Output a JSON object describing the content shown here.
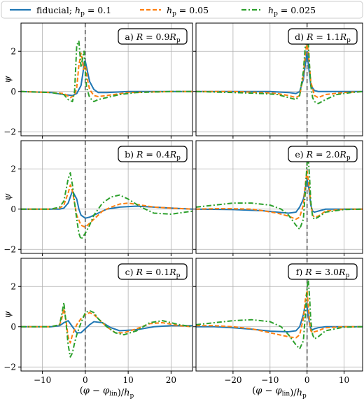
{
  "chart_data": {
    "type": "line",
    "legend": {
      "placement": "top",
      "entries": [
        {
          "name": "fiducial; h_p = 0.1",
          "color": "#1f77b4",
          "dash": "solid"
        },
        {
          "name": "h_p = 0.05",
          "color": "#ff7f0e",
          "dash": "dashed"
        },
        {
          "name": "h_p = 0.025",
          "color": "#2ca02c",
          "dash": "dashdot"
        }
      ]
    },
    "shared": {
      "ylabel": "ψ",
      "xlabel": "(φ − φ_lin)/h_p",
      "ylim": [
        -2.2,
        3.4
      ],
      "yticks": [
        -2,
        0,
        2
      ],
      "vline_x": 0,
      "grid": true
    },
    "columns": [
      {
        "xlim": [
          -15,
          25
        ],
        "xticks": [
          -10,
          0,
          10,
          20
        ]
      },
      {
        "xlim": [
          -30,
          15
        ],
        "xticks": [
          -20,
          -10,
          0,
          10
        ]
      }
    ],
    "panels": [
      {
        "label": "a)",
        "R": "0.9",
        "col": 0,
        "row": 0,
        "series": [
          {
            "name": "fiducial; h_p = 0.1",
            "x": [
              -15,
              -8,
              -5,
              -3,
              -2,
              -1,
              -0.5,
              -0.2,
              0,
              0.5,
              1,
              2,
              3,
              5,
              10,
              20,
              25
            ],
            "y": [
              0,
              -0.05,
              -0.15,
              -0.2,
              -0.1,
              0.3,
              1.0,
              1.5,
              1.5,
              1.0,
              0.5,
              0.1,
              -0.05,
              -0.05,
              0,
              0,
              0
            ]
          },
          {
            "name": "h_p = 0.05",
            "x": [
              -15,
              -8,
              -5,
              -3.5,
              -2.5,
              -2,
              -1.5,
              -1,
              -0.7,
              -0.4,
              0,
              0.5,
              1,
              2,
              3,
              5,
              10,
              20,
              25
            ],
            "y": [
              0,
              -0.05,
              -0.1,
              -0.3,
              -0.2,
              0.2,
              1.3,
              1.9,
              1.6,
              1.1,
              1.3,
              0.6,
              0.1,
              -0.2,
              -0.25,
              -0.2,
              -0.05,
              0,
              0
            ]
          },
          {
            "name": "h_p = 0.025",
            "x": [
              -15,
              -8,
              -5,
              -4,
              -3,
              -2.5,
              -2,
              -1.5,
              -1,
              -0.6,
              -0.3,
              0,
              0.3,
              1,
              2,
              3,
              5,
              8,
              12,
              20,
              25
            ],
            "y": [
              0,
              -0.05,
              -0.15,
              -0.4,
              -0.5,
              0,
              2.3,
              2.5,
              1.2,
              1.7,
              2.0,
              1.0,
              0.2,
              -0.3,
              -0.5,
              -0.4,
              -0.3,
              -0.15,
              -0.05,
              0,
              0
            ]
          }
        ]
      },
      {
        "label": "b)",
        "R": "0.4",
        "col": 0,
        "row": 1,
        "series": [
          {
            "name": "fiducial; h_p = 0.1",
            "x": [
              -15,
              -8,
              -6,
              -5,
              -4,
              -3,
              -2,
              -1.5,
              -1,
              0,
              1,
              3,
              5,
              8,
              12,
              16,
              20,
              25
            ],
            "y": [
              0,
              0,
              0,
              0.05,
              0.3,
              0.9,
              0.5,
              0,
              -0.3,
              -0.45,
              -0.4,
              -0.2,
              0,
              0.1,
              0.15,
              0.1,
              0.05,
              0
            ]
          },
          {
            "name": "h_p = 0.05",
            "x": [
              -15,
              -8,
              -6,
              -5,
              -4,
              -3.5,
              -3,
              -2.5,
              -2,
              -1,
              0,
              1,
              2,
              4,
              6,
              8,
              10,
              13,
              16,
              20,
              25
            ],
            "y": [
              0,
              0,
              0.05,
              0.2,
              0.8,
              1.2,
              0.9,
              0.3,
              -0.3,
              -0.8,
              -0.9,
              -0.7,
              -0.5,
              -0.1,
              0.1,
              0.25,
              0.3,
              0.2,
              0.1,
              0.05,
              0
            ]
          },
          {
            "name": "h_p = 0.025",
            "x": [
              -15,
              -8,
              -6,
              -5,
              -4,
              -3.5,
              -3,
              -2.5,
              -2,
              -1.5,
              -1,
              0,
              1,
              2,
              4,
              6,
              8,
              10,
              13,
              16,
              20,
              25
            ],
            "y": [
              0,
              0,
              0.1,
              0.4,
              1.5,
              1.8,
              1.2,
              0.3,
              -0.5,
              -1.2,
              -1.5,
              -1.2,
              -0.8,
              -0.3,
              0.3,
              0.6,
              0.7,
              0.5,
              0.1,
              -0.2,
              -0.25,
              -0.1
            ]
          }
        ]
      },
      {
        "label": "c)",
        "R": "0.1",
        "col": 0,
        "row": 2,
        "series": [
          {
            "name": "fiducial; h_p = 0.1",
            "x": [
              -15,
              -8,
              -6,
              -5,
              -4,
              -3,
              -2,
              -1,
              0,
              1,
              2,
              4,
              6,
              8,
              12,
              16,
              20,
              25
            ],
            "y": [
              0,
              0,
              0.05,
              0.2,
              0.3,
              0,
              -0.3,
              -0.3,
              -0.1,
              0.1,
              0.25,
              0.2,
              -0.05,
              -0.2,
              -0.15,
              0,
              0.05,
              0.05
            ]
          },
          {
            "name": "h_p = 0.05",
            "x": [
              -15,
              -8,
              -6,
              -5.5,
              -5,
              -4.5,
              -4,
              -3.5,
              -3,
              -2,
              -1,
              0,
              1,
              2,
              3,
              5,
              7,
              9,
              12,
              15,
              18,
              22,
              25
            ],
            "y": [
              0,
              0,
              0.1,
              0.4,
              0.9,
              0.3,
              -0.5,
              -0.8,
              -0.4,
              0.1,
              0.4,
              0.6,
              0.7,
              0.6,
              0.4,
              0,
              -0.3,
              -0.3,
              -0.1,
              0.15,
              0.2,
              0.05,
              0
            ]
          },
          {
            "name": "h_p = 0.025",
            "x": [
              -15,
              -8,
              -6,
              -5.5,
              -5,
              -4.5,
              -4,
              -3.5,
              -3,
              -2.5,
              -2,
              -1,
              0,
              1,
              2,
              3,
              5,
              7,
              9,
              12,
              15,
              18,
              22,
              25
            ],
            "y": [
              0,
              0,
              0.1,
              0.6,
              1.2,
              0.2,
              -0.9,
              -1.5,
              -1.3,
              -0.8,
              -0.4,
              0.2,
              0.7,
              0.8,
              0.7,
              0.4,
              0,
              -0.3,
              -0.4,
              -0.2,
              0.2,
              0.3,
              0.1,
              0
            ]
          }
        ]
      },
      {
        "label": "d)",
        "R": "1.1",
        "col": 1,
        "row": 0,
        "series": [
          {
            "name": "fiducial; h_p = 0.1",
            "x": [
              -30,
              -20,
              -10,
              -5,
              -3,
              -2,
              -1,
              -0.5,
              0,
              0.5,
              1,
              2,
              3,
              5,
              10,
              15
            ],
            "y": [
              0,
              0,
              0,
              -0.05,
              -0.1,
              0,
              0.6,
              1.3,
              2.0,
              1.1,
              0.3,
              0.05,
              0,
              0,
              0,
              0
            ]
          },
          {
            "name": "h_p = 0.05",
            "x": [
              -30,
              -20,
              -12,
              -8,
              -5,
              -3,
              -2,
              -1,
              -0.5,
              0,
              0.5,
              1,
              2,
              3,
              5,
              10,
              15
            ],
            "y": [
              0,
              0,
              -0.05,
              -0.1,
              -0.2,
              -0.3,
              -0.2,
              0.8,
              1.8,
              2.5,
              1.6,
              0.5,
              -0.2,
              -0.3,
              -0.15,
              -0.05,
              0
            ]
          },
          {
            "name": "h_p = 0.025",
            "x": [
              -30,
              -20,
              -12,
              -8,
              -5,
              -3,
              -2,
              -1,
              -0.5,
              0,
              0.3,
              0.7,
              1,
              1.5,
              2,
              3,
              5,
              8,
              12,
              15
            ],
            "y": [
              0,
              -0.05,
              -0.1,
              -0.15,
              -0.3,
              -0.4,
              -0.2,
              1.0,
              2.2,
              2.9,
              2.5,
              1.2,
              0.3,
              -0.3,
              -0.5,
              -0.6,
              -0.4,
              -0.15,
              -0.05,
              0
            ]
          }
        ]
      },
      {
        "label": "e)",
        "R": "2.0",
        "col": 1,
        "row": 1,
        "series": [
          {
            "name": "fiducial; h_p = 0.1",
            "x": [
              -30,
              -20,
              -12,
              -8,
              -5,
              -3,
              -2,
              -1,
              -0.5,
              0,
              0.5,
              1,
              1.5,
              2,
              3,
              5,
              10,
              15
            ],
            "y": [
              0,
              -0.02,
              -0.08,
              -0.15,
              -0.2,
              -0.15,
              0.1,
              0.5,
              1.0,
              1.5,
              1.0,
              0.2,
              -0.1,
              -0.15,
              -0.1,
              0,
              0,
              0
            ]
          },
          {
            "name": "h_p = 0.05",
            "x": [
              -30,
              -25,
              -20,
              -15,
              -12,
              -8,
              -5,
              -3,
              -2,
              -1,
              -0.5,
              0,
              0.5,
              1,
              1.5,
              2,
              3,
              5,
              10,
              15
            ],
            "y": [
              0,
              0.02,
              0.02,
              0,
              -0.08,
              -0.2,
              -0.35,
              -0.5,
              -0.4,
              0.2,
              1.2,
              1.9,
              1.2,
              0.3,
              -0.3,
              -0.4,
              -0.35,
              -0.1,
              0,
              0
            ]
          },
          {
            "name": "h_p = 0.025",
            "x": [
              -30,
              -25,
              -20,
              -15,
              -10,
              -7,
              -5,
              -3,
              -2,
              -1,
              -0.5,
              0,
              0.3,
              0.7,
              1,
              1.5,
              2,
              3,
              5,
              10,
              15
            ],
            "y": [
              0.1,
              0.2,
              0.3,
              0.3,
              0.2,
              0,
              -0.3,
              -0.8,
              -1.0,
              -0.5,
              0.8,
              2.3,
              2.6,
              1.5,
              0.4,
              -0.4,
              -0.5,
              -0.4,
              -0.15,
              -0.02,
              0
            ]
          }
        ]
      },
      {
        "label": "f)",
        "R": "3.0",
        "col": 1,
        "row": 2,
        "series": [
          {
            "name": "fiducial; h_p = 0.1",
            "x": [
              -30,
              -25,
              -20,
              -15,
              -10,
              -5,
              -3,
              -2,
              -1,
              -0.5,
              0,
              0.3,
              0.7,
              1,
              1.5,
              2,
              3,
              5,
              10,
              15
            ],
            "y": [
              0,
              0,
              -0.05,
              -0.12,
              -0.22,
              -0.25,
              -0.2,
              0,
              0.6,
              1.1,
              1.1,
              0.6,
              0.1,
              -0.1,
              -0.15,
              -0.1,
              -0.05,
              0,
              0,
              0
            ]
          },
          {
            "name": "h_p = 0.05",
            "x": [
              -30,
              -25,
              -20,
              -15,
              -10,
              -5,
              -3,
              -2,
              -1,
              -0.5,
              0,
              0.3,
              0.7,
              1,
              1.5,
              2,
              3,
              5,
              10,
              15
            ],
            "y": [
              0.05,
              0.05,
              0,
              -0.1,
              -0.3,
              -0.5,
              -0.55,
              -0.4,
              0.4,
              1.3,
              1.8,
              1.1,
              0.2,
              -0.2,
              -0.3,
              -0.25,
              -0.2,
              -0.05,
              0,
              0
            ]
          },
          {
            "name": "h_p = 0.025",
            "x": [
              -30,
              -25,
              -20,
              -15,
              -10,
              -7,
              -5,
              -3,
              -2,
              -1,
              -0.5,
              0,
              0.3,
              0.7,
              1,
              1.5,
              2,
              3,
              5,
              10,
              15
            ],
            "y": [
              0.1,
              0.2,
              0.3,
              0.35,
              0.25,
              0,
              -0.4,
              -0.9,
              -1.1,
              -0.7,
              0.5,
              1.9,
              2.4,
              1.4,
              0.3,
              -0.4,
              -0.6,
              -0.5,
              -0.2,
              -0.02,
              0
            ]
          }
        ]
      }
    ]
  }
}
